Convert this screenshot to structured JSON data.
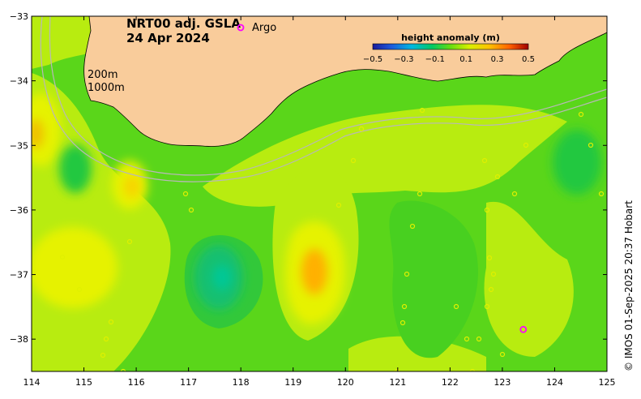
{
  "title": {
    "line1": "NRT00 adj. GSLA",
    "line2": "24 Apr 2024"
  },
  "legend": {
    "argo_label": "Argo",
    "argo_color": "#ff00ff"
  },
  "isobaths": {
    "label_200": "200m",
    "label_1000": "1000m"
  },
  "colorbar": {
    "title": "height anomaly (m)",
    "ticks": [
      "−0.5",
      "−0.3",
      "−0.1",
      "0.1",
      "0.3",
      "0.5"
    ]
  },
  "credit": "© IMOS 01-Sep-2025 20:37 Hobart",
  "colors": {
    "land": "#f9cc9b",
    "background_green": "#5ad61a"
  },
  "chart_data": {
    "type": "heatmap",
    "x_ticks": [
      "114",
      "115",
      "116",
      "117",
      "118",
      "119",
      "120",
      "121",
      "122",
      "123",
      "124",
      "125"
    ],
    "y_ticks": [
      "−33",
      "−34",
      "−35",
      "−36",
      "−37",
      "−38"
    ],
    "xlim": [
      114,
      125
    ],
    "ylim": [
      -38.5,
      -33
    ],
    "argo_floats": [
      {
        "lon": 123.4,
        "lat": -37.85
      }
    ],
    "anomaly_features": [
      {
        "lon": 117.6,
        "lat": -37.05,
        "value": -0.15
      },
      {
        "lon": 119.45,
        "lat": -37.0,
        "value": 0.3
      },
      {
        "lon": 114.85,
        "lat": -35.35,
        "value": -0.05
      },
      {
        "lon": 124.35,
        "lat": -35.2,
        "value": -0.05
      },
      {
        "lon": 115.5,
        "lat": -35.6,
        "value": 0.2
      },
      {
        "lon": 114.6,
        "lat": -36.8,
        "value": 0.2
      },
      {
        "lon": 114.1,
        "lat": -35.0,
        "value": 0.2
      }
    ]
  }
}
